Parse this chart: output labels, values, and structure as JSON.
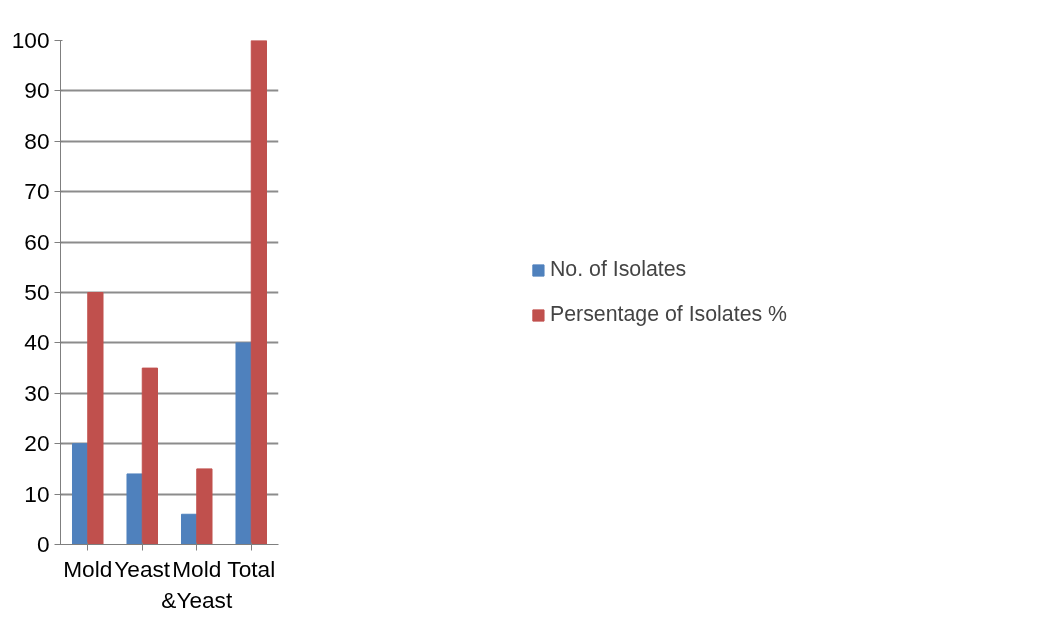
{
  "chart_data": {
    "type": "bar",
    "categories": [
      "Mold",
      "Yeast",
      "Mold &Yeast",
      "Total"
    ],
    "series": [
      {
        "name": "No. of Isolates",
        "color": "#4f81bd",
        "values": [
          20,
          14,
          6,
          40
        ]
      },
      {
        "name": "Persentage of Isolates %",
        "color": "#c0504d",
        "values": [
          50,
          35,
          15,
          100
        ]
      }
    ],
    "ylim": [
      0,
      100
    ],
    "yticks": [
      0,
      10,
      20,
      30,
      40,
      50,
      60,
      70,
      80,
      90,
      100
    ],
    "grid": "y",
    "legend": "right"
  }
}
